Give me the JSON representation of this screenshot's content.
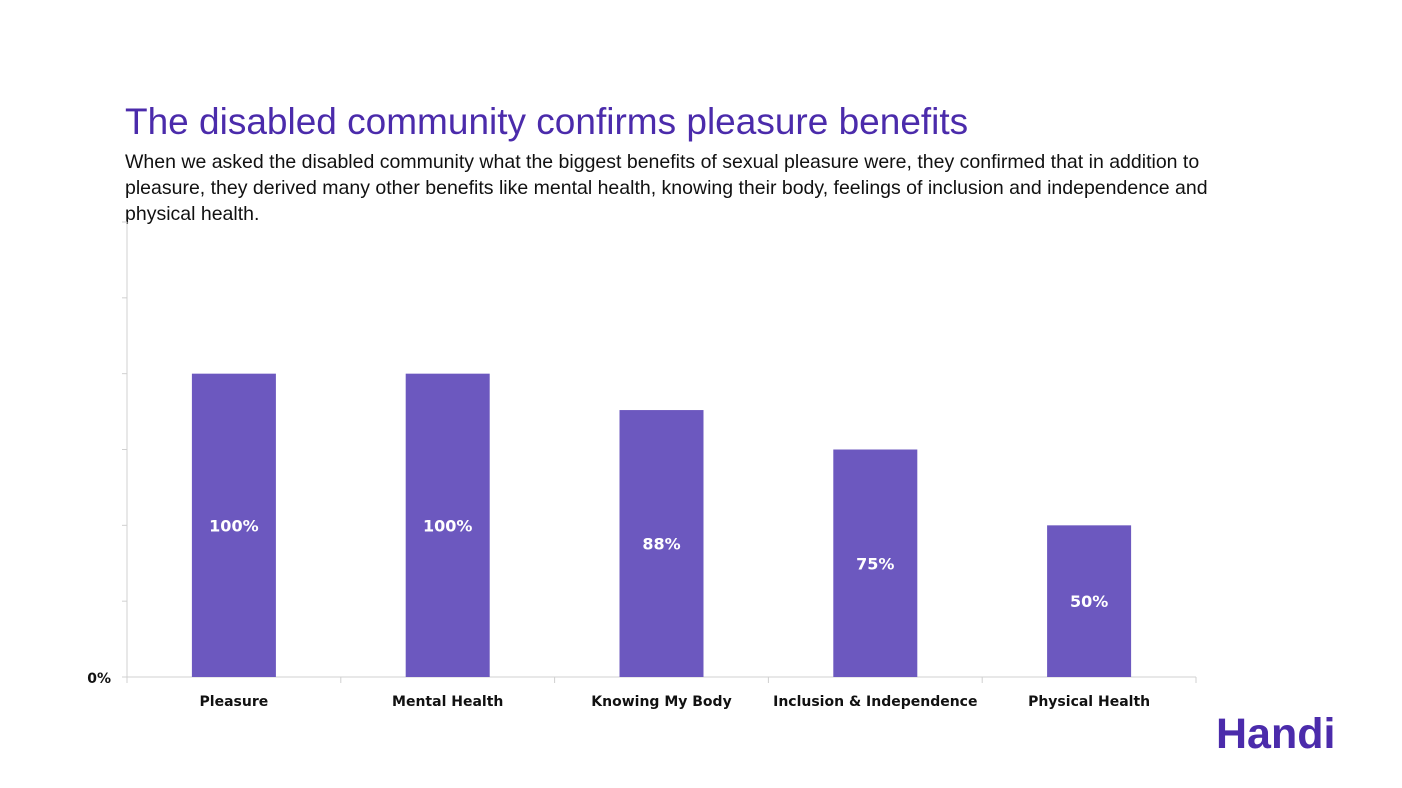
{
  "slide": {
    "title": "The disabled community confirms pleasure benefits",
    "body": "When we asked the disabled community what the biggest benefits of sexual pleasure were, they confirmed that in addition to pleasure, they derived many other benefits like mental health, knowing their body, feelings of inclusion and independence and physical health.",
    "logo": "Handi"
  },
  "colors": {
    "bar": "#6c58bf",
    "title": "#4b2bab",
    "axis": "#d0d0d0"
  },
  "chart_data": {
    "type": "bar",
    "categories": [
      "Pleasure",
      "Mental Health",
      "Knowing My Body",
      "Inclusion & Independence",
      "Physical Health"
    ],
    "values": [
      100,
      100,
      88,
      75,
      50
    ],
    "data_labels": [
      "100%",
      "100%",
      "88%",
      "75%",
      "50%"
    ],
    "ytick_labels": [
      "0%"
    ],
    "ylim": [
      0,
      150
    ],
    "grid": false,
    "legend": "none"
  }
}
